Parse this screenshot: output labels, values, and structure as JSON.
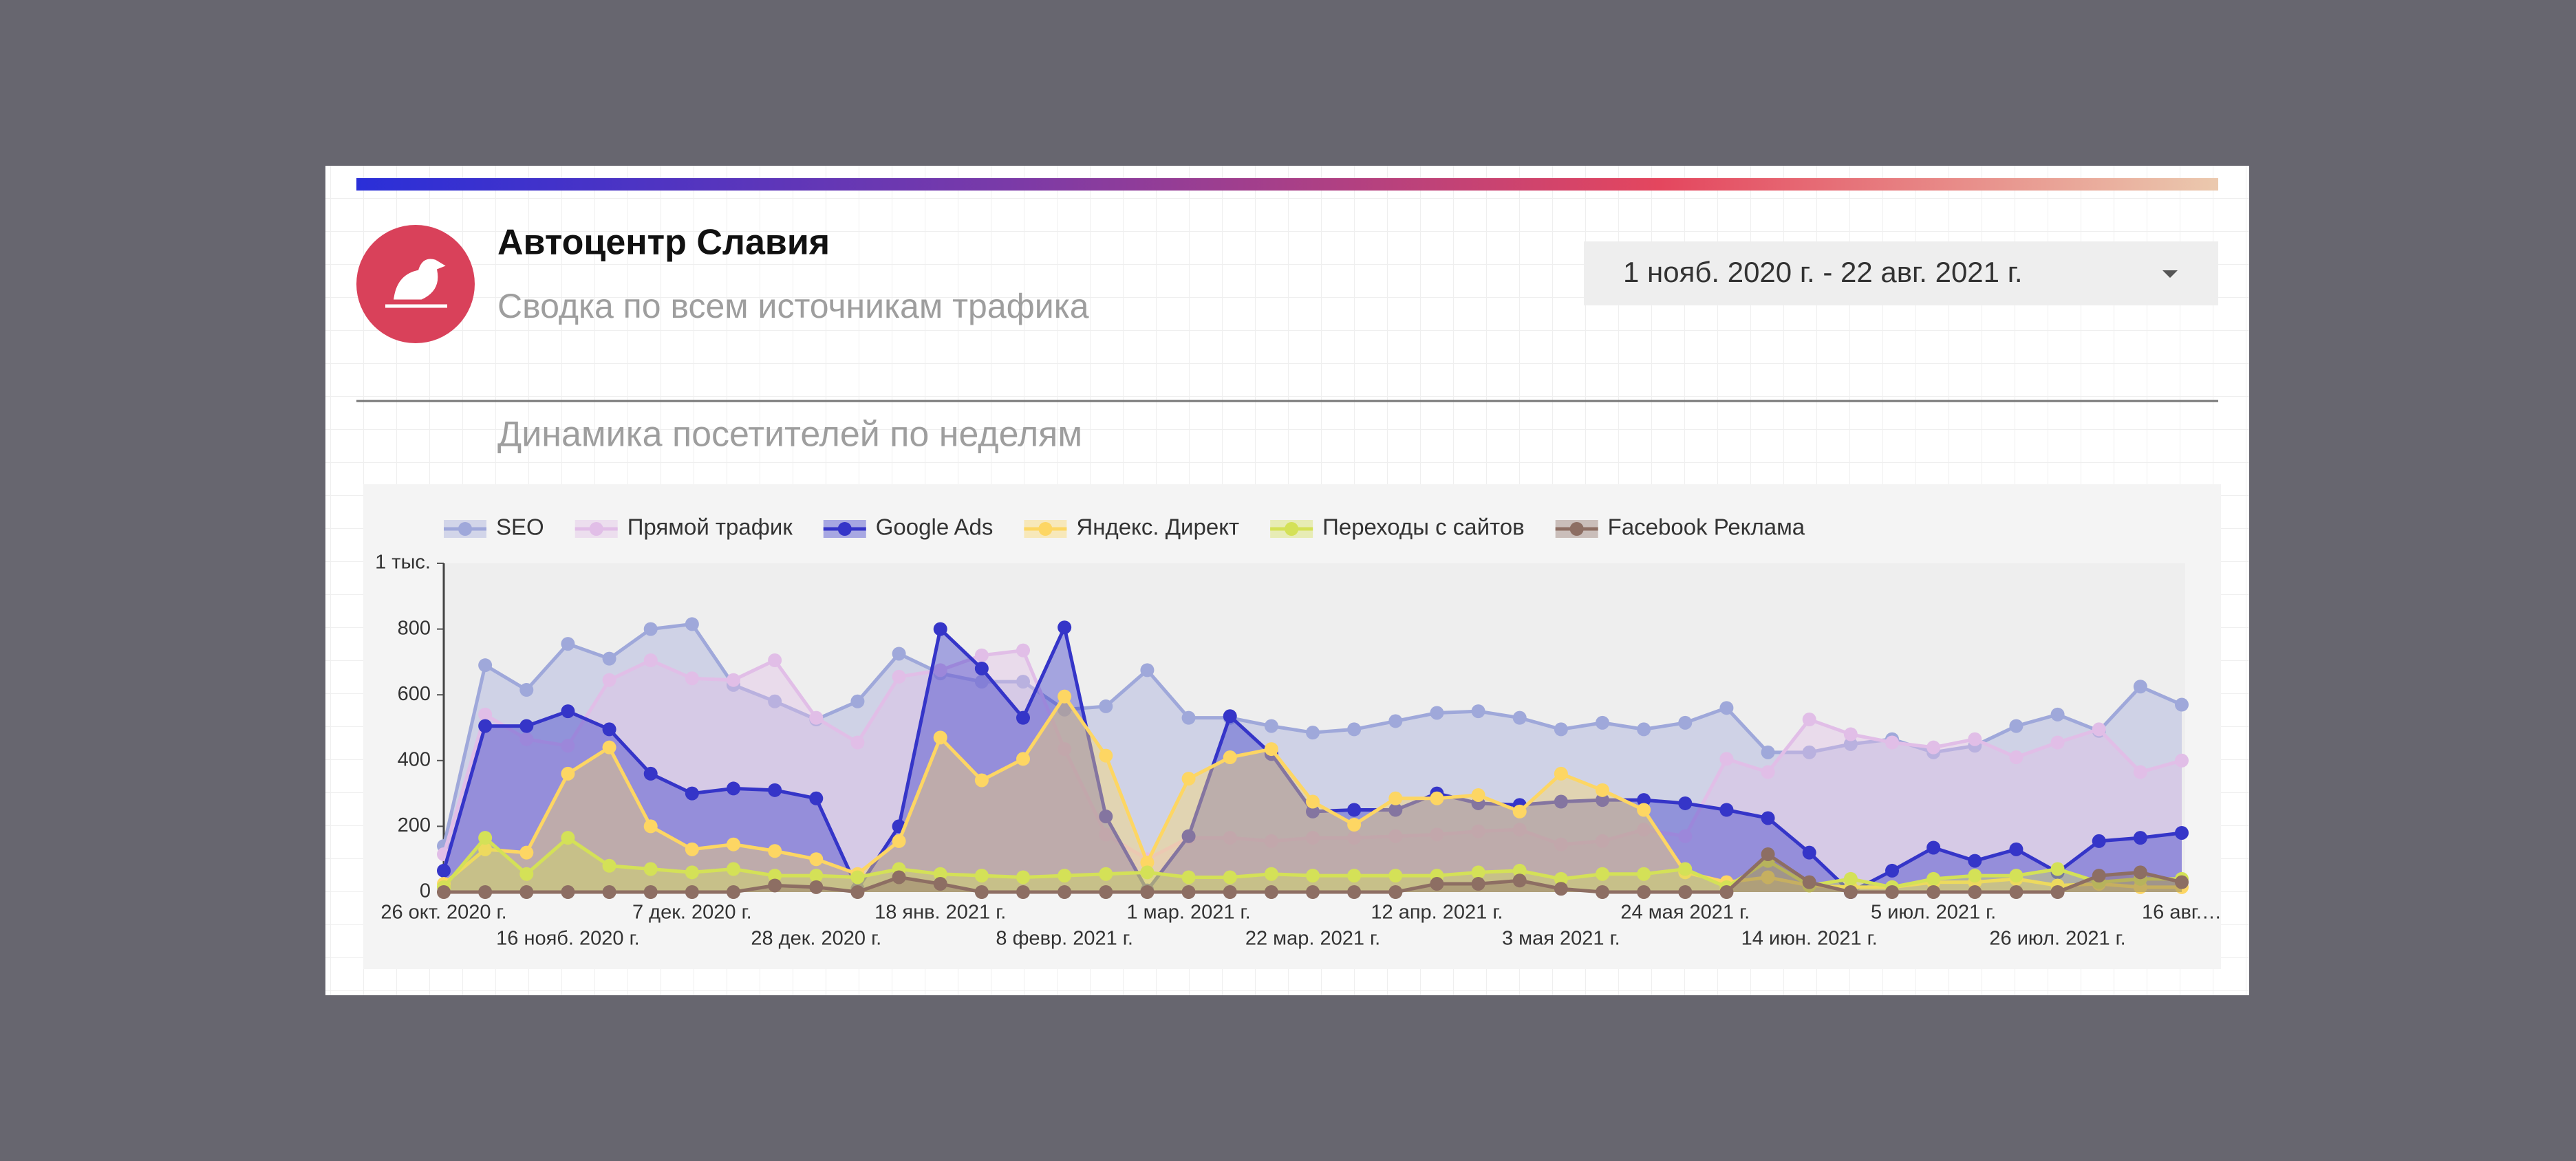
{
  "header": {
    "title": "Автоцентр Славия",
    "subtitle": "Сводка по всем источникам трафика",
    "date_range": "1 нояб. 2020 г. - 22 авг. 2021 г."
  },
  "chart_data": {
    "type": "line",
    "title": "Динамика посетителей по неделям",
    "legend": "top-left",
    "grid": false,
    "categories": [
      "26 окт. 2020 г.",
      null,
      null,
      "16 нояб. 2020 г.",
      null,
      null,
      "7 дек. 2020 г.",
      null,
      null,
      "28 дек. 2020 г.",
      null,
      null,
      "18 янв. 2021 г.",
      null,
      null,
      "8 февр. 2021 г.",
      null,
      null,
      "1 мар. 2021 г.",
      null,
      null,
      "22 мар. 2021 г.",
      null,
      null,
      "12 апр. 2021 г.",
      null,
      null,
      "3 мая 2021 г.",
      null,
      null,
      "24 мая 2021 г.",
      null,
      null,
      "14 июн. 2021 г.",
      null,
      null,
      "5 июл. 2021 г.",
      null,
      null,
      "26 июл. 2021 г.",
      null,
      null,
      "16 авг.…"
    ],
    "ylim": [
      0,
      1000
    ],
    "yticks": [
      0,
      200,
      400,
      600,
      800,
      {
        "value": 1000,
        "label": "1 тыс."
      }
    ],
    "series": [
      {
        "name": "SEO",
        "color": "#9fa8da",
        "values": [
          140,
          690,
          615,
          755,
          710,
          800,
          815,
          630,
          580,
          525,
          580,
          725,
          665,
          640,
          640,
          555,
          565,
          675,
          530,
          530,
          505,
          485,
          495,
          520,
          545,
          550,
          530,
          495,
          515,
          495,
          515,
          560,
          425,
          425,
          450,
          465,
          425,
          445,
          505,
          540,
          490,
          625,
          570
        ]
      },
      {
        "name": "Прямой трафик",
        "color": "#e1bee7",
        "values": [
          115,
          540,
          465,
          445,
          645,
          705,
          650,
          645,
          705,
          530,
          455,
          655,
          675,
          720,
          735,
          435,
          175,
          100,
          165,
          165,
          155,
          165,
          165,
          170,
          175,
          185,
          190,
          145,
          155,
          190,
          170,
          405,
          365,
          525,
          480,
          455,
          440,
          465,
          410,
          455,
          495,
          365,
          400
        ]
      },
      {
        "name": "Google Ads",
        "color": "#3535c8",
        "values": [
          65,
          505,
          505,
          550,
          495,
          360,
          300,
          315,
          310,
          285,
          10,
          200,
          800,
          680,
          530,
          805,
          230,
          5,
          170,
          535,
          420,
          245,
          250,
          250,
          300,
          270,
          265,
          275,
          280,
          280,
          270,
          250,
          225,
          120,
          0,
          65,
          135,
          95,
          130,
          60,
          155,
          165,
          180
        ]
      },
      {
        "name": "Яндекс. Директ",
        "color": "#fdd663",
        "values": [
          25,
          130,
          120,
          360,
          440,
          200,
          130,
          145,
          125,
          100,
          55,
          155,
          470,
          340,
          405,
          595,
          415,
          90,
          345,
          410,
          435,
          275,
          205,
          285,
          285,
          295,
          245,
          360,
          310,
          250,
          60,
          30,
          45,
          20,
          15,
          15,
          30,
          30,
          40,
          20,
          25,
          15,
          15
        ]
      },
      {
        "name": "Переходы с сайтов",
        "color": "#d4e157",
        "values": [
          15,
          165,
          55,
          165,
          80,
          70,
          60,
          70,
          50,
          50,
          45,
          70,
          55,
          50,
          45,
          50,
          55,
          60,
          45,
          45,
          55,
          50,
          50,
          50,
          50,
          60,
          65,
          40,
          55,
          55,
          70,
          15,
          95,
          20,
          40,
          15,
          40,
          50,
          50,
          70,
          30,
          40,
          40
        ]
      },
      {
        "name": "Facebook Реклама",
        "color": "#8d6e63",
        "values": [
          0,
          0,
          0,
          0,
          0,
          0,
          0,
          0,
          20,
          15,
          0,
          45,
          25,
          0,
          0,
          0,
          0,
          0,
          0,
          0,
          0,
          0,
          0,
          0,
          25,
          25,
          35,
          10,
          0,
          0,
          0,
          0,
          115,
          30,
          0,
          0,
          0,
          0,
          0,
          0,
          50,
          60,
          30
        ]
      }
    ]
  }
}
